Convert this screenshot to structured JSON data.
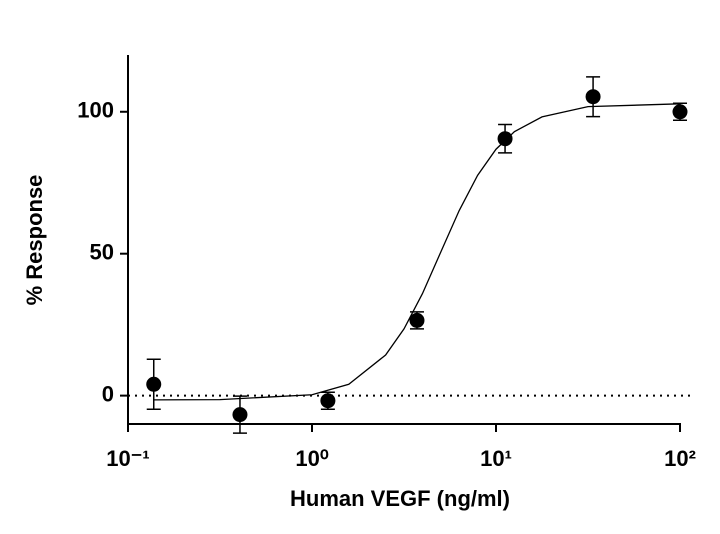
{
  "chart_data": {
    "type": "scatter",
    "x_label": "Human VEGF (ng/ml)",
    "y_label": "% Response",
    "x": [
      0.138,
      0.406,
      1.22,
      3.72,
      11.2,
      33.7,
      100
    ],
    "values": [
      4,
      -6.7,
      -1.8,
      26.5,
      90.5,
      105.3,
      100
    ],
    "errors": [
      8.8,
      6.5,
      3,
      3,
      5,
      7,
      3
    ],
    "color": "#000000",
    "fit": {
      "x": [
        0.138,
        0.316,
        1,
        1.585,
        2.512,
        3.162,
        3.981,
        5.012,
        6.31,
        7.943,
        10,
        12.59,
        17.78,
        31.62,
        100
      ],
      "values": [
        -1.5,
        -1.4,
        0.3,
        4.0,
        14.3,
        23.5,
        35.9,
        50.6,
        65.2,
        77.6,
        86.8,
        93.0,
        98.2,
        101.8,
        102.8
      ]
    },
    "reference_line": 0,
    "xscale": "log",
    "xlim": [
      0.1,
      100
    ],
    "ylim": [
      -10,
      120
    ],
    "xticks": [
      {
        "value": 0.1,
        "label": "10⁻¹"
      },
      {
        "value": 1,
        "label": "10⁰"
      },
      {
        "value": 10,
        "label": "10¹"
      },
      {
        "value": 100,
        "label": "10²"
      }
    ],
    "yticks": [
      0,
      50,
      100
    ]
  }
}
